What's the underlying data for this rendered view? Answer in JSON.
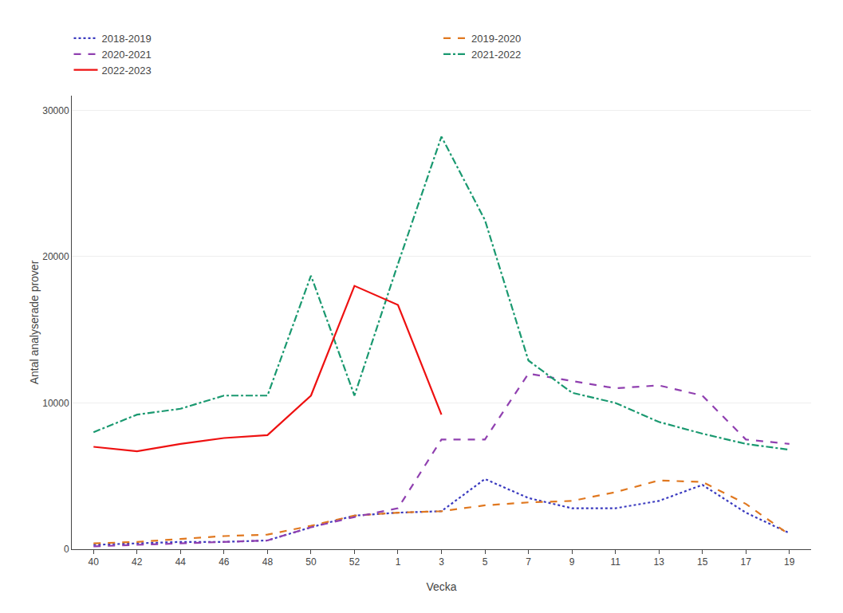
{
  "chart_data": {
    "type": "line",
    "xlabel": "Vecka",
    "ylabel": "Antal analyserade prover",
    "categories": [
      "40",
      "42",
      "44",
      "46",
      "48",
      "50",
      "52",
      "1",
      "3",
      "5",
      "7",
      "9",
      "11",
      "13",
      "15",
      "17",
      "19"
    ],
    "series": [
      {
        "name": "2018-2019",
        "color": "#3a3abf",
        "line_style": "dotted",
        "values": [
          300,
          400,
          500,
          500,
          600,
          1500,
          2300,
          2500,
          2600,
          4800,
          3500,
          2800,
          2800,
          3300,
          4400,
          2500,
          1100
        ]
      },
      {
        "name": "2019-2020",
        "color": "#e07820",
        "line_style": "dashed",
        "values": [
          400,
          500,
          700,
          900,
          1000,
          1600,
          2300,
          2500,
          2600,
          3000,
          3200,
          3300,
          3900,
          4700,
          4600,
          3100,
          1000
        ]
      },
      {
        "name": "2020-2021",
        "color": "#9040b0",
        "line_style": "dashed",
        "values": [
          200,
          300,
          400,
          500,
          600,
          1500,
          2200,
          2800,
          7500,
          7500,
          12000,
          11500,
          11000,
          11200,
          10500,
          7500,
          7200
        ]
      },
      {
        "name": "2021-2022",
        "color": "#1a9970",
        "line_style": "dashdot",
        "values": [
          8000,
          9200,
          9600,
          10500,
          10500,
          18700,
          10500,
          19500,
          28200,
          22500,
          12900,
          10700,
          10000,
          8700,
          7900,
          7200,
          6800
        ]
      },
      {
        "name": "2022-2023",
        "color": "#ee1111",
        "line_style": "solid",
        "values": [
          7000,
          6700,
          7200,
          7600,
          7800,
          10500,
          18000,
          16700,
          9200,
          null,
          null,
          null,
          null,
          null,
          null,
          null,
          null
        ]
      }
    ],
    "ylim": [
      0,
      31000
    ],
    "yticks": [
      0,
      10000,
      20000,
      30000
    ],
    "grid": true,
    "legend": "top"
  }
}
